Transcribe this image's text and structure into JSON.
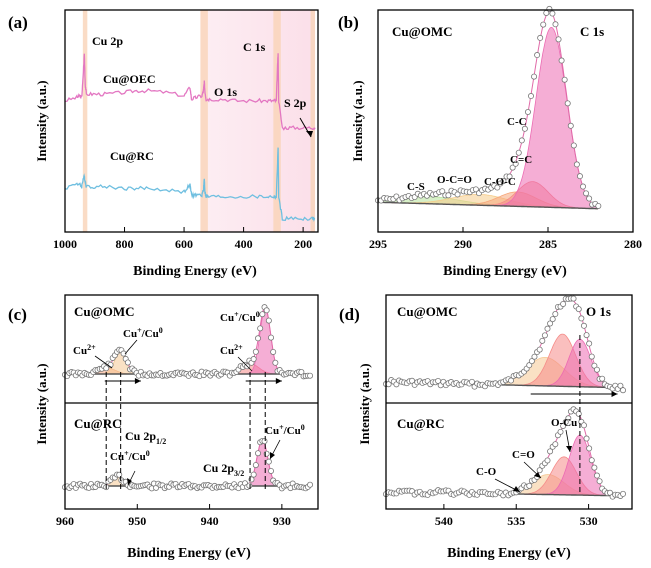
{
  "chart_data": [
    {
      "panel": "(a)",
      "type": "line",
      "xlabel": "Binding Energy (eV)",
      "ylabel": "Intensity (a.u.)",
      "xlim": [
        1000,
        150
      ],
      "xticks": [
        1000,
        800,
        600,
        400,
        200
      ],
      "highlight_bands": [
        {
          "from": 940,
          "to": 925
        },
        {
          "from": 545,
          "to": 520
        },
        {
          "from": 300,
          "to": 275
        },
        {
          "from": 175,
          "to": 160
        }
      ],
      "background_band": {
        "from": 545,
        "to": 160
      },
      "peak_labels": [
        {
          "text": "Cu 2p",
          "x": 935
        },
        {
          "text": "O 1s",
          "x": 531
        },
        {
          "text": "C 1s",
          "x": 285
        },
        {
          "text": "S 2p",
          "x": 167
        }
      ],
      "series": [
        {
          "name": "Cu@OEC",
          "color": "#e377c2",
          "x": [
            1000,
            960,
            950,
            944,
            940,
            935,
            932,
            928,
            900,
            860,
            800,
            760,
            720,
            660,
            600,
            580,
            575,
            560,
            540,
            535,
            532,
            530,
            526,
            515,
            470,
            420,
            360,
            320,
            300,
            290,
            286,
            284,
            282,
            270,
            240,
            200,
            170,
            160
          ],
          "y": [
            72,
            74,
            75,
            74,
            84,
            100,
            82,
            76,
            76,
            76,
            77,
            78,
            78,
            77,
            75,
            80,
            73,
            74,
            75,
            78,
            83,
            78,
            73,
            73,
            73,
            72,
            72,
            72,
            72,
            72,
            92,
            100,
            72,
            56,
            56,
            56,
            56,
            56
          ]
        },
        {
          "name": "Cu@RC",
          "color": "#6fbfe0",
          "x": [
            1000,
            960,
            950,
            944,
            940,
            935,
            932,
            928,
            900,
            860,
            800,
            760,
            720,
            660,
            600,
            580,
            575,
            560,
            540,
            535,
            532,
            530,
            526,
            515,
            470,
            420,
            360,
            320,
            300,
            290,
            286,
            284,
            282,
            270,
            240,
            200,
            170,
            160
          ],
          "y": [
            20,
            23,
            22,
            21,
            25,
            27,
            24,
            21,
            21,
            21,
            20,
            20,
            20,
            19,
            18,
            22,
            16,
            16,
            16,
            19,
            26,
            18,
            15,
            15,
            15,
            15,
            15,
            15,
            15,
            15,
            34,
            45,
            15,
            2,
            2,
            2,
            2,
            2
          ]
        }
      ]
    },
    {
      "panel": "(b)",
      "type": "line",
      "title": "C 1s",
      "sample": "Cu@OMC",
      "xlabel": "Binding Energy (eV)",
      "ylabel": "Intensity (a.u.)",
      "xlim": [
        295,
        280
      ],
      "xticks": [
        295,
        290,
        285,
        280
      ],
      "components": [
        {
          "label": "C-S",
          "center": 292.0,
          "height": 4,
          "width": 1.8,
          "color": "#b6e39b"
        },
        {
          "label": "O-C=O",
          "center": 289.0,
          "height": 6,
          "width": 1.6,
          "color": "#f5cc8a"
        },
        {
          "label": "C-O-C",
          "center": 286.8,
          "height": 8,
          "width": 1.1,
          "color": "#f6a77b"
        },
        {
          "label": "C=C",
          "center": 285.9,
          "height": 14,
          "width": 0.9,
          "color": "#f58b88"
        },
        {
          "label": "C-C",
          "center": 284.8,
          "height": 100,
          "width": 0.9,
          "color": "#ec6bb3"
        }
      ],
      "background_line": {
        "x": [
          295,
          280
        ],
        "y": [
          3,
          -3
        ]
      }
    },
    {
      "panel": "(c)",
      "type": "line",
      "xlabel": "Binding Energy (eV)",
      "ylabel": "Intensity (a.u.)",
      "xlim": [
        960,
        925
      ],
      "xticks": [
        960,
        950,
        940,
        930
      ],
      "annotations": [
        "Cu 2p1/2",
        "Cu 2p3/2"
      ],
      "dashed_lines_x": [
        954.3,
        952.3,
        934.4,
        932.3
      ],
      "panels": [
        {
          "sample": "Cu@OMC",
          "peak_labels": [
            "Cu2+",
            "Cu+/Cu0",
            "Cu2+",
            "Cu+/Cu0"
          ],
          "components": [
            {
              "label": "Cu2+",
              "center": 954.3,
              "height": 6,
              "width": 1.2,
              "color": "#f5a47d"
            },
            {
              "label": "Cu+/Cu0",
              "center": 952.3,
              "height": 22,
              "width": 0.8,
              "color": "#f6c893"
            },
            {
              "label": "Cu2+",
              "center": 934.4,
              "height": 10,
              "width": 1.2,
              "color": "#f58b88"
            },
            {
              "label": "Cu+/Cu0",
              "center": 932.3,
              "height": 62,
              "width": 0.75,
              "color": "#ec6bb3"
            }
          ],
          "shift_arrows": [
            {
              "from": 954.5,
              "to": 949.5
            },
            {
              "from": 935.0,
              "to": 930.0
            }
          ]
        },
        {
          "sample": "Cu@RC",
          "peak_labels": [
            "Cu+/Cu0",
            "Cu+/Cu0"
          ],
          "components": [
            {
              "label": "Cu+/Cu0",
              "center": 952.7,
              "height": 9,
              "width": 0.8,
              "color": "#f6c893"
            },
            {
              "label": "Cu+/Cu0",
              "center": 932.7,
              "height": 44,
              "width": 0.75,
              "color": "#ec6bb3"
            }
          ]
        }
      ]
    },
    {
      "panel": "(d)",
      "type": "line",
      "title": "O 1s",
      "xlabel": "Binding Energy (eV)",
      "ylabel": "Intensity (a.u.)",
      "xlim": [
        544,
        527
      ],
      "xticks": [
        540,
        535,
        530
      ],
      "dashed_line_x": 530.6,
      "panels": [
        {
          "sample": "Cu@OMC",
          "components": [
            {
              "label": "",
              "center": 533.0,
              "height": 30,
              "width": 1.3,
              "color": "#f6c893"
            },
            {
              "label": "",
              "center": 531.8,
              "height": 55,
              "width": 0.9,
              "color": "#f58b88"
            },
            {
              "label": "",
              "center": 530.6,
              "height": 50,
              "width": 0.75,
              "color": "#ec6bb3"
            }
          ],
          "shift_arrow": {
            "from": 534.0,
            "to": 528.0
          }
        },
        {
          "sample": "Cu@RC",
          "peak_labels": [
            "C-O",
            "C=O",
            "O-Cu"
          ],
          "components": [
            {
              "label": "C-O",
              "center": 532.8,
              "height": 20,
              "width": 1.1,
              "color": "#f6c893"
            },
            {
              "label": "C=O",
              "center": 531.7,
              "height": 38,
              "width": 0.85,
              "color": "#f58b88"
            },
            {
              "label": "O-Cu",
              "center": 530.6,
              "height": 60,
              "width": 0.75,
              "color": "#ec6bb3"
            }
          ]
        }
      ]
    }
  ]
}
